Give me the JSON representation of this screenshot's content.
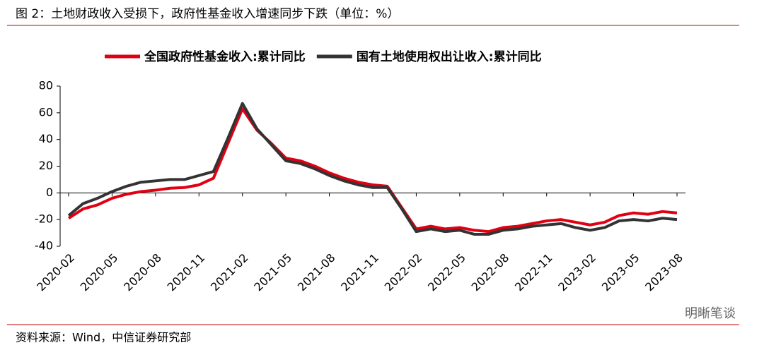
{
  "chart_data": {
    "type": "line",
    "title": "图 2：土地财政收入受损下，政府性基金收入增速同步下跌（单位：%）",
    "source": "资料来源：Wind，中信证券研究部",
    "watermark": "明晰笔谈",
    "categories": [
      "2020-02",
      null,
      null,
      "2020-05",
      null,
      null,
      "2020-08",
      null,
      null,
      "2020-11",
      null,
      null,
      "2021-02",
      null,
      null,
      "2021-05",
      null,
      null,
      "2021-08",
      null,
      null,
      "2021-11",
      null,
      null,
      "2022-02",
      null,
      null,
      "2022-05",
      null,
      null,
      "2022-08",
      null,
      null,
      "2022-11",
      null,
      null,
      "2023-02",
      null,
      null,
      "2023-05",
      null,
      null,
      "2023-08"
    ],
    "series": [
      {
        "name": "全国政府性基金收入:累计同比",
        "color": "#e00012",
        "values": [
          -19,
          -12,
          -9,
          -4,
          -1,
          1,
          2,
          3.5,
          4,
          6,
          11,
          37,
          63,
          47,
          37,
          26,
          24,
          20,
          15,
          11,
          8,
          6,
          5,
          -11,
          -27,
          -25,
          -27,
          -26,
          -28,
          -29,
          -26,
          -25,
          -23,
          -21,
          -20,
          -22,
          -24,
          -22,
          -17,
          -15,
          -16,
          -14,
          -15
        ]
      },
      {
        "name": "国有土地使用权出让收入:累计同比",
        "color": "#333333",
        "values": [
          -17,
          -8,
          -4,
          1,
          5,
          8,
          9,
          10,
          10,
          13,
          16,
          41,
          67,
          48,
          36,
          24,
          22,
          18,
          13,
          9,
          6,
          4,
          4,
          -12,
          -29,
          -27,
          -29,
          -28,
          -31,
          -31,
          -28,
          -27,
          -25,
          -24,
          -23,
          -26,
          -28,
          -26,
          -21,
          -20,
          -21,
          -19,
          -20
        ]
      }
    ],
    "ylim": [
      -40,
      80
    ],
    "yticks": [
      -40,
      -20,
      0,
      20,
      40,
      60,
      80
    ],
    "legend": "top",
    "grid": false
  }
}
